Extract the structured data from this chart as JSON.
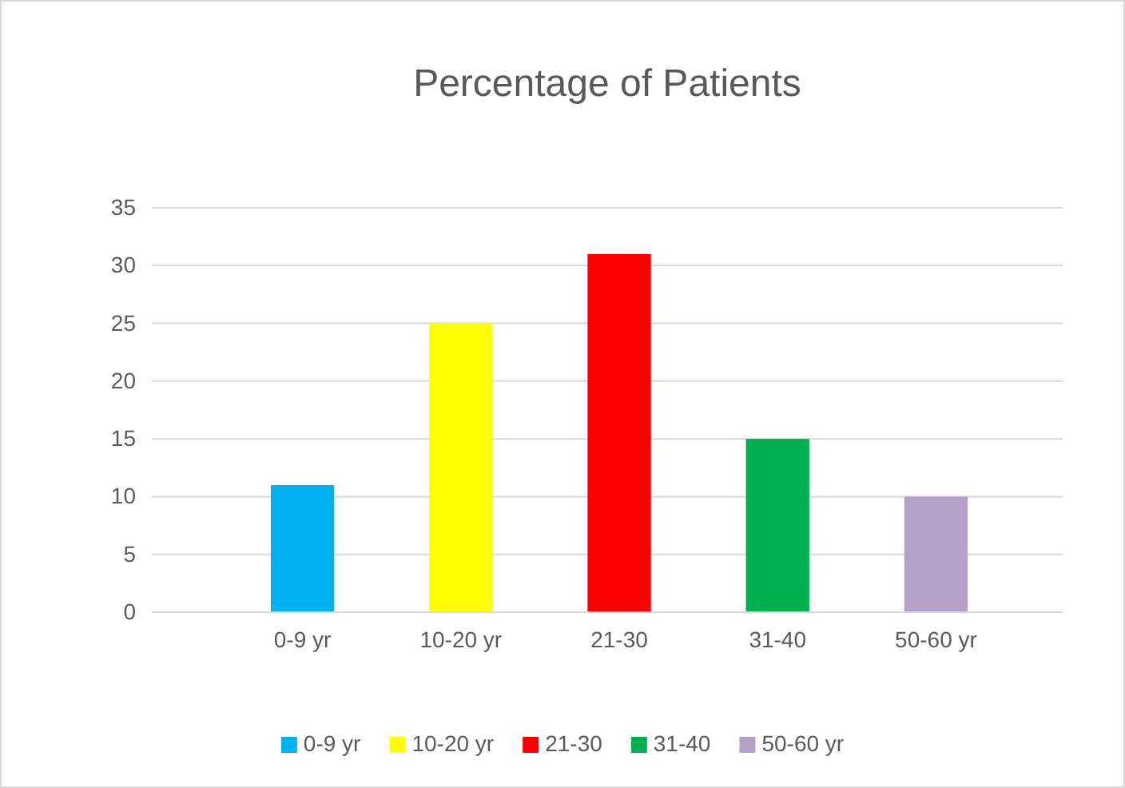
{
  "chart_data": {
    "type": "bar",
    "title": "Percentage of Patients",
    "categories": [
      "0-9 yr",
      "10-20 yr",
      "21-30",
      "31-40",
      "50-60 yr"
    ],
    "series": [
      {
        "name": "0-9 yr",
        "color": "#00b0f0",
        "values": [
          11,
          null,
          null,
          null,
          null
        ]
      },
      {
        "name": "10-20 yr",
        "color": "#ffff00",
        "values": [
          null,
          25,
          null,
          null,
          null
        ]
      },
      {
        "name": "21-30",
        "color": "#ff0000",
        "values": [
          null,
          null,
          31,
          null,
          null
        ]
      },
      {
        "name": "31-40",
        "color": "#00b050",
        "values": [
          null,
          null,
          null,
          15,
          null
        ]
      },
      {
        "name": "50-60 yr",
        "color": "#b4a0c8",
        "values": [
          null,
          null,
          null,
          null,
          10
        ]
      }
    ],
    "ylim": [
      0,
      35
    ],
    "yticks": [
      0,
      5,
      10,
      15,
      20,
      25,
      30,
      35
    ],
    "grid": "y",
    "legend": "bottom"
  }
}
